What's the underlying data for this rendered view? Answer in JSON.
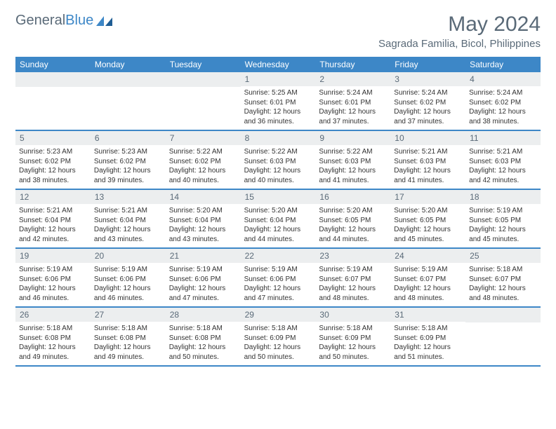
{
  "logo": {
    "text1": "General",
    "text2": "Blue"
  },
  "title": "May 2024",
  "location": "Sagrada Familia, Bicol, Philippines",
  "colors": {
    "header_bg": "#3d87c7",
    "header_text": "#ffffff",
    "daynum_bg": "#eceeef",
    "daynum_text": "#5a6a78",
    "border": "#3d87c7",
    "text": "#333333",
    "title_text": "#5a6a78"
  },
  "day_headers": [
    "Sunday",
    "Monday",
    "Tuesday",
    "Wednesday",
    "Thursday",
    "Friday",
    "Saturday"
  ],
  "weeks": [
    [
      {
        "n": "",
        "sr": "",
        "ss": "",
        "dl": ""
      },
      {
        "n": "",
        "sr": "",
        "ss": "",
        "dl": ""
      },
      {
        "n": "",
        "sr": "",
        "ss": "",
        "dl": ""
      },
      {
        "n": "1",
        "sr": "5:25 AM",
        "ss": "6:01 PM",
        "dl": "12 hours and 36 minutes."
      },
      {
        "n": "2",
        "sr": "5:24 AM",
        "ss": "6:01 PM",
        "dl": "12 hours and 37 minutes."
      },
      {
        "n": "3",
        "sr": "5:24 AM",
        "ss": "6:02 PM",
        "dl": "12 hours and 37 minutes."
      },
      {
        "n": "4",
        "sr": "5:24 AM",
        "ss": "6:02 PM",
        "dl": "12 hours and 38 minutes."
      }
    ],
    [
      {
        "n": "5",
        "sr": "5:23 AM",
        "ss": "6:02 PM",
        "dl": "12 hours and 38 minutes."
      },
      {
        "n": "6",
        "sr": "5:23 AM",
        "ss": "6:02 PM",
        "dl": "12 hours and 39 minutes."
      },
      {
        "n": "7",
        "sr": "5:22 AM",
        "ss": "6:02 PM",
        "dl": "12 hours and 40 minutes."
      },
      {
        "n": "8",
        "sr": "5:22 AM",
        "ss": "6:03 PM",
        "dl": "12 hours and 40 minutes."
      },
      {
        "n": "9",
        "sr": "5:22 AM",
        "ss": "6:03 PM",
        "dl": "12 hours and 41 minutes."
      },
      {
        "n": "10",
        "sr": "5:21 AM",
        "ss": "6:03 PM",
        "dl": "12 hours and 41 minutes."
      },
      {
        "n": "11",
        "sr": "5:21 AM",
        "ss": "6:03 PM",
        "dl": "12 hours and 42 minutes."
      }
    ],
    [
      {
        "n": "12",
        "sr": "5:21 AM",
        "ss": "6:04 PM",
        "dl": "12 hours and 42 minutes."
      },
      {
        "n": "13",
        "sr": "5:21 AM",
        "ss": "6:04 PM",
        "dl": "12 hours and 43 minutes."
      },
      {
        "n": "14",
        "sr": "5:20 AM",
        "ss": "6:04 PM",
        "dl": "12 hours and 43 minutes."
      },
      {
        "n": "15",
        "sr": "5:20 AM",
        "ss": "6:04 PM",
        "dl": "12 hours and 44 minutes."
      },
      {
        "n": "16",
        "sr": "5:20 AM",
        "ss": "6:05 PM",
        "dl": "12 hours and 44 minutes."
      },
      {
        "n": "17",
        "sr": "5:20 AM",
        "ss": "6:05 PM",
        "dl": "12 hours and 45 minutes."
      },
      {
        "n": "18",
        "sr": "5:19 AM",
        "ss": "6:05 PM",
        "dl": "12 hours and 45 minutes."
      }
    ],
    [
      {
        "n": "19",
        "sr": "5:19 AM",
        "ss": "6:06 PM",
        "dl": "12 hours and 46 minutes."
      },
      {
        "n": "20",
        "sr": "5:19 AM",
        "ss": "6:06 PM",
        "dl": "12 hours and 46 minutes."
      },
      {
        "n": "21",
        "sr": "5:19 AM",
        "ss": "6:06 PM",
        "dl": "12 hours and 47 minutes."
      },
      {
        "n": "22",
        "sr": "5:19 AM",
        "ss": "6:06 PM",
        "dl": "12 hours and 47 minutes."
      },
      {
        "n": "23",
        "sr": "5:19 AM",
        "ss": "6:07 PM",
        "dl": "12 hours and 48 minutes."
      },
      {
        "n": "24",
        "sr": "5:19 AM",
        "ss": "6:07 PM",
        "dl": "12 hours and 48 minutes."
      },
      {
        "n": "25",
        "sr": "5:18 AM",
        "ss": "6:07 PM",
        "dl": "12 hours and 48 minutes."
      }
    ],
    [
      {
        "n": "26",
        "sr": "5:18 AM",
        "ss": "6:08 PM",
        "dl": "12 hours and 49 minutes."
      },
      {
        "n": "27",
        "sr": "5:18 AM",
        "ss": "6:08 PM",
        "dl": "12 hours and 49 minutes."
      },
      {
        "n": "28",
        "sr": "5:18 AM",
        "ss": "6:08 PM",
        "dl": "12 hours and 50 minutes."
      },
      {
        "n": "29",
        "sr": "5:18 AM",
        "ss": "6:09 PM",
        "dl": "12 hours and 50 minutes."
      },
      {
        "n": "30",
        "sr": "5:18 AM",
        "ss": "6:09 PM",
        "dl": "12 hours and 50 minutes."
      },
      {
        "n": "31",
        "sr": "5:18 AM",
        "ss": "6:09 PM",
        "dl": "12 hours and 51 minutes."
      },
      {
        "n": "",
        "sr": "",
        "ss": "",
        "dl": ""
      }
    ]
  ],
  "labels": {
    "sunrise": "Sunrise:",
    "sunset": "Sunset:",
    "daylight": "Daylight:"
  }
}
